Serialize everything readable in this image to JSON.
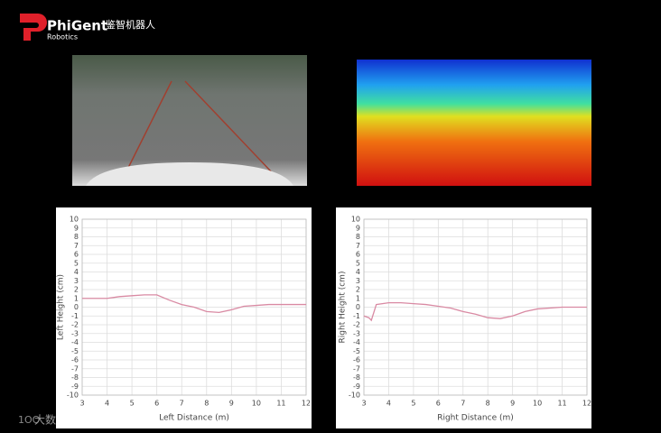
{
  "header": {
    "brand": "PhiGent",
    "sub": "Robotics",
    "cn": "鉴智机器人"
  },
  "watermark": "大数跨境",
  "chart_data": [
    {
      "type": "line",
      "xlabel": "Left Distance (m)",
      "ylabel": "Left Height (cm)",
      "x": [
        3,
        3.5,
        4,
        4.5,
        5,
        5.5,
        6,
        6.5,
        7,
        7.5,
        8,
        8.5,
        9,
        9.5,
        10,
        10.5,
        11,
        11.5,
        12
      ],
      "series": [
        {
          "color": "#d98aa3",
          "values": [
            1.0,
            1.0,
            1.0,
            1.2,
            1.3,
            1.4,
            1.4,
            0.8,
            0.3,
            0.0,
            -0.5,
            -0.6,
            -0.3,
            0.1,
            0.2,
            0.3,
            0.3,
            0.3,
            0.3
          ]
        }
      ],
      "xlim": [
        3,
        12
      ],
      "ylim": [
        -10,
        10
      ],
      "xticks": [
        3,
        4,
        5,
        6,
        7,
        8,
        9,
        10,
        11,
        12
      ],
      "yticks": [
        -10,
        -9,
        -8,
        -7,
        -6,
        -5,
        -4,
        -3,
        -2,
        -1,
        0,
        1,
        2,
        3,
        4,
        5,
        6,
        7,
        8,
        9,
        10
      ],
      "grid": true
    },
    {
      "type": "line",
      "xlabel": "Right Distance (m)",
      "ylabel": "Right Height (cm)",
      "x": [
        3,
        3.2,
        3.3,
        3.5,
        4,
        4.5,
        5,
        5.5,
        6,
        6.5,
        7,
        7.5,
        8,
        8.5,
        9,
        9.5,
        10,
        11,
        12
      ],
      "series": [
        {
          "color": "#d98aa3",
          "values": [
            -1.0,
            -1.2,
            -1.5,
            0.3,
            0.5,
            0.5,
            0.4,
            0.3,
            0.1,
            -0.1,
            -0.5,
            -0.8,
            -1.2,
            -1.3,
            -1.0,
            -0.5,
            -0.2,
            0,
            0
          ]
        }
      ],
      "xlim": [
        3,
        12
      ],
      "ylim": [
        -10,
        10
      ],
      "xticks": [
        3,
        4,
        5,
        6,
        7,
        8,
        9,
        10,
        11,
        12
      ],
      "yticks": [
        -10,
        -9,
        -8,
        -7,
        -6,
        -5,
        -4,
        -3,
        -2,
        -1,
        0,
        1,
        2,
        3,
        4,
        5,
        6,
        7,
        8,
        9,
        10
      ],
      "grid": true
    }
  ]
}
